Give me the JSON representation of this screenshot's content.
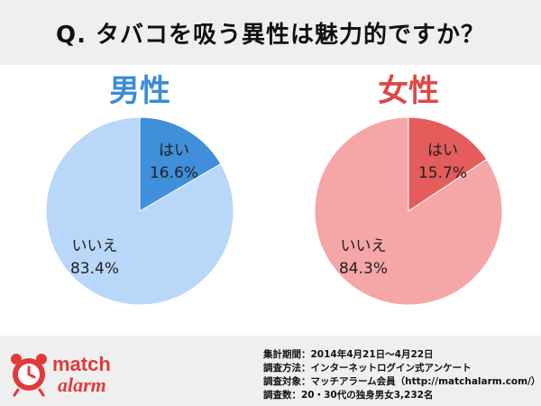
{
  "title": "Q. タバコを吸う異性は魅力的ですか？",
  "chart_data": [
    {
      "type": "pie",
      "title": "男性",
      "categories": [
        "はい",
        "いいえ"
      ],
      "values": [
        16.6,
        83.4
      ],
      "value_labels": [
        "16.6%",
        "83.4%"
      ],
      "colors": [
        "#3f8fda",
        "#b9d7f8"
      ],
      "title_color": "#3a8cd6"
    },
    {
      "type": "pie",
      "title": "女性",
      "categories": [
        "はい",
        "いいえ"
      ],
      "values": [
        15.7,
        84.3
      ],
      "value_labels": [
        "15.7%",
        "84.3%"
      ],
      "colors": [
        "#e45c5c",
        "#f6a6a6"
      ],
      "title_color": "#e04646"
    }
  ],
  "survey": [
    "集計期間：2014年4月21日～4月22日",
    "調査方法：インターネットログイン式アンケート",
    "調査対象：マッチアラーム会員（http://matchalarm.com/）",
    "調査数：20・30代の独身男女3,232名"
  ],
  "logo": {
    "line1": "match",
    "line2": "alarm",
    "color": "#e23a3a"
  }
}
